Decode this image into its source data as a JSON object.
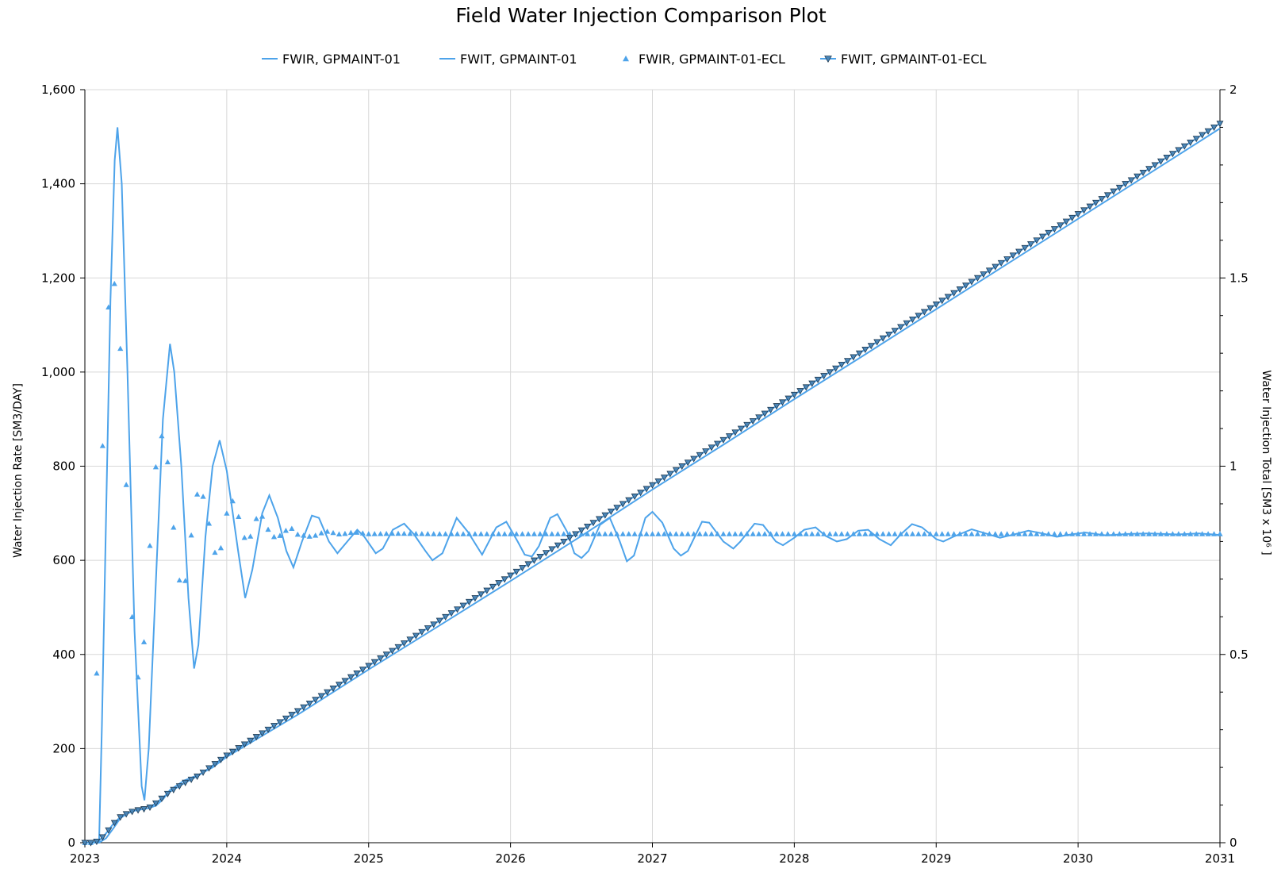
{
  "chart_data": {
    "type": "line",
    "title": "Field Water Injection Comparison Plot",
    "x_ticks": [
      "2023",
      "2024",
      "2025",
      "2026",
      "2027",
      "2028",
      "2029",
      "2030",
      "2031"
    ],
    "xlim": [
      2023,
      2031
    ],
    "ylabel_left": "Water Injection Rate [SM3/DAY]",
    "ylim_left": [
      0,
      1600
    ],
    "yticks_left": [
      "0",
      "200",
      "400",
      "600",
      "800",
      "1,000",
      "1,200",
      "1,400",
      "1,600"
    ],
    "ylabel_right": "Water Injection Total [SM3 x 10⁶ ]",
    "ylim_right": [
      0,
      2
    ],
    "yticks_right": [
      "0",
      "0.5",
      "1",
      "1.5",
      "2"
    ],
    "grid": true,
    "legend_position": "top",
    "series": [
      {
        "name": "FWIR, GPMAINT-01",
        "axis": "left",
        "style": "line",
        "color": "#4da3ea",
        "points": [
          [
            2023.0,
            0
          ],
          [
            2023.1,
            0
          ],
          [
            2023.12,
            250
          ],
          [
            2023.15,
            700
          ],
          [
            2023.18,
            1150
          ],
          [
            2023.21,
            1450
          ],
          [
            2023.23,
            1520
          ],
          [
            2023.26,
            1400
          ],
          [
            2023.3,
            1000
          ],
          [
            2023.35,
            450
          ],
          [
            2023.4,
            120
          ],
          [
            2023.42,
            90
          ],
          [
            2023.45,
            200
          ],
          [
            2023.5,
            550
          ],
          [
            2023.55,
            900
          ],
          [
            2023.6,
            1060
          ],
          [
            2023.63,
            1000
          ],
          [
            2023.68,
            800
          ],
          [
            2023.73,
            520
          ],
          [
            2023.77,
            370
          ],
          [
            2023.8,
            420
          ],
          [
            2023.85,
            650
          ],
          [
            2023.9,
            800
          ],
          [
            2023.95,
            855
          ],
          [
            2024.0,
            790
          ],
          [
            2024.08,
            620
          ],
          [
            2024.13,
            520
          ],
          [
            2024.18,
            580
          ],
          [
            2024.25,
            700
          ],
          [
            2024.3,
            738
          ],
          [
            2024.36,
            690
          ],
          [
            2024.42,
            620
          ],
          [
            2024.47,
            585
          ],
          [
            2024.53,
            640
          ],
          [
            2024.6,
            695
          ],
          [
            2024.65,
            690
          ],
          [
            2024.72,
            640
          ],
          [
            2024.78,
            615
          ],
          [
            2024.85,
            640
          ],
          [
            2024.92,
            665
          ],
          [
            2024.97,
            650
          ],
          [
            2025.05,
            615
          ],
          [
            2025.1,
            625
          ],
          [
            2025.17,
            665
          ],
          [
            2025.25,
            678
          ],
          [
            2025.32,
            655
          ],
          [
            2025.4,
            620
          ],
          [
            2025.45,
            600
          ],
          [
            2025.52,
            615
          ],
          [
            2025.62,
            690
          ],
          [
            2025.7,
            660
          ],
          [
            2025.8,
            612
          ],
          [
            2025.9,
            670
          ],
          [
            2025.97,
            682
          ],
          [
            2026.05,
            640
          ],
          [
            2026.1,
            612
          ],
          [
            2026.15,
            608
          ],
          [
            2026.2,
            630
          ],
          [
            2026.28,
            690
          ],
          [
            2026.33,
            698
          ],
          [
            2026.4,
            660
          ],
          [
            2026.45,
            615
          ],
          [
            2026.5,
            605
          ],
          [
            2026.55,
            620
          ],
          [
            2026.63,
            675
          ],
          [
            2026.7,
            690
          ],
          [
            2026.77,
            640
          ],
          [
            2026.82,
            598
          ],
          [
            2026.87,
            610
          ],
          [
            2026.95,
            690
          ],
          [
            2027.0,
            703
          ],
          [
            2027.07,
            680
          ],
          [
            2027.15,
            625
          ],
          [
            2027.2,
            610
          ],
          [
            2027.25,
            620
          ],
          [
            2027.35,
            682
          ],
          [
            2027.4,
            680
          ],
          [
            2027.5,
            640
          ],
          [
            2027.57,
            625
          ],
          [
            2027.62,
            640
          ],
          [
            2027.72,
            678
          ],
          [
            2027.78,
            675
          ],
          [
            2027.87,
            640
          ],
          [
            2027.92,
            632
          ],
          [
            2028.0,
            648
          ],
          [
            2028.07,
            665
          ],
          [
            2028.15,
            670
          ],
          [
            2028.22,
            652
          ],
          [
            2028.3,
            640
          ],
          [
            2028.37,
            645
          ],
          [
            2028.45,
            663
          ],
          [
            2028.52,
            665
          ],
          [
            2028.6,
            645
          ],
          [
            2028.68,
            632
          ],
          [
            2028.75,
            655
          ],
          [
            2028.83,
            677
          ],
          [
            2028.9,
            670
          ],
          [
            2029.0,
            645
          ],
          [
            2029.05,
            640
          ],
          [
            2029.12,
            650
          ],
          [
            2029.25,
            666
          ],
          [
            2029.35,
            657
          ],
          [
            2029.45,
            648
          ],
          [
            2029.55,
            655
          ],
          [
            2029.65,
            663
          ],
          [
            2029.75,
            657
          ],
          [
            2029.85,
            650
          ],
          [
            2029.95,
            655
          ],
          [
            2030.05,
            659
          ],
          [
            2030.2,
            653
          ],
          [
            2030.35,
            656
          ],
          [
            2030.5,
            657
          ],
          [
            2030.7,
            655
          ],
          [
            2030.85,
            657
          ],
          [
            2031.0,
            654
          ]
        ]
      },
      {
        "name": "FWIT, GPMAINT-01",
        "axis": "right",
        "style": "line",
        "color": "#4da3ea",
        "points": [
          [
            2023.0,
            0
          ],
          [
            2023.1,
            0
          ],
          [
            2023.15,
            0.012
          ],
          [
            2023.2,
            0.038
          ],
          [
            2023.25,
            0.065
          ],
          [
            2023.3,
            0.078
          ],
          [
            2023.35,
            0.085
          ],
          [
            2023.45,
            0.092
          ],
          [
            2023.5,
            0.098
          ],
          [
            2023.55,
            0.115
          ],
          [
            2023.6,
            0.14
          ],
          [
            2023.7,
            0.165
          ],
          [
            2023.8,
            0.18
          ],
          [
            2023.9,
            0.2
          ],
          [
            2024.0,
            0.228
          ],
          [
            2024.5,
            0.34
          ],
          [
            2025.0,
            0.46
          ],
          [
            2025.5,
            0.577
          ],
          [
            2026.0,
            0.695
          ],
          [
            2026.5,
            0.815
          ],
          [
            2027.0,
            0.938
          ],
          [
            2027.5,
            1.057
          ],
          [
            2028.0,
            1.178
          ],
          [
            2028.5,
            1.297
          ],
          [
            2029.0,
            1.417
          ],
          [
            2029.5,
            1.537
          ],
          [
            2030.0,
            1.657
          ],
          [
            2030.5,
            1.777
          ],
          [
            2031.0,
            1.897
          ]
        ]
      },
      {
        "name": "FWIR, GPMAINT-01-ECL",
        "axis": "left",
        "style": "triangle-up",
        "color": "#4da3ea",
        "points": [
          [
            2023.0,
            0
          ],
          [
            2023.05,
            0
          ],
          [
            2023.07,
            200
          ],
          [
            2023.1,
            560
          ],
          [
            2023.13,
            900
          ],
          [
            2023.16,
            1120
          ],
          [
            2023.19,
            1200
          ],
          [
            2023.22,
            1180
          ],
          [
            2023.25,
            1050
          ],
          [
            2023.28,
            850
          ],
          [
            2023.31,
            620
          ],
          [
            2023.34,
            440
          ],
          [
            2023.37,
            350
          ],
          [
            2023.4,
            360
          ],
          [
            2023.43,
            480
          ],
          [
            2023.46,
            640
          ],
          [
            2023.49,
            770
          ],
          [
            2023.52,
            855
          ],
          [
            2023.55,
            868
          ],
          [
            2023.58,
            820
          ],
          [
            2023.61,
            720
          ],
          [
            2023.64,
            620
          ],
          [
            2023.67,
            550
          ],
          [
            2023.7,
            540
          ],
          [
            2023.73,
            600
          ],
          [
            2023.76,
            680
          ],
          [
            2023.79,
            740
          ],
          [
            2023.82,
            748
          ],
          [
            2023.85,
            720
          ],
          [
            2023.88,
            670
          ],
          [
            2023.91,
            620
          ],
          [
            2023.94,
            605
          ],
          [
            2023.97,
            640
          ],
          [
            2024.0,
            700
          ],
          [
            2024.03,
            730
          ],
          [
            2024.06,
            720
          ],
          [
            2024.09,
            685
          ],
          [
            2024.12,
            650
          ],
          [
            2024.15,
            640
          ],
          [
            2024.18,
            660
          ],
          [
            2024.21,
            690
          ],
          [
            2024.24,
            700
          ],
          [
            2024.27,
            680
          ],
          [
            2024.3,
            660
          ],
          [
            2024.35,
            645
          ],
          [
            2024.4,
            660
          ],
          [
            2024.45,
            670
          ],
          [
            2024.5,
            655
          ],
          [
            2024.6,
            650
          ],
          [
            2024.7,
            662
          ],
          [
            2024.8,
            655
          ],
          [
            2024.9,
            660
          ],
          [
            2025.0,
            656
          ],
          [
            2025.2,
            657
          ],
          [
            2025.5,
            656
          ],
          [
            2026.0,
            656
          ],
          [
            2026.5,
            656
          ],
          [
            2027.0,
            656
          ],
          [
            2027.5,
            656
          ],
          [
            2028.0,
            656
          ],
          [
            2028.5,
            656
          ],
          [
            2029.0,
            656
          ],
          [
            2029.5,
            656
          ],
          [
            2030.0,
            656
          ],
          [
            2030.5,
            656
          ],
          [
            2031.0,
            656
          ]
        ]
      },
      {
        "name": "FWIT, GPMAINT-01-ECL",
        "axis": "right",
        "style": "line-triangle-down",
        "color": "#4da3ea",
        "marker_fill": "#4a86b8",
        "points": [
          [
            2023.0,
            0
          ],
          [
            2023.05,
            0
          ],
          [
            2023.1,
            0.005
          ],
          [
            2023.15,
            0.025
          ],
          [
            2023.2,
            0.05
          ],
          [
            2023.25,
            0.068
          ],
          [
            2023.3,
            0.078
          ],
          [
            2023.35,
            0.085
          ],
          [
            2023.45,
            0.092
          ],
          [
            2023.5,
            0.105
          ],
          [
            2023.6,
            0.135
          ],
          [
            2023.7,
            0.158
          ],
          [
            2023.8,
            0.178
          ],
          [
            2023.9,
            0.205
          ],
          [
            2024.0,
            0.232
          ],
          [
            2024.5,
            0.35
          ],
          [
            2025.0,
            0.47
          ],
          [
            2025.5,
            0.59
          ],
          [
            2026.0,
            0.71
          ],
          [
            2026.5,
            0.83
          ],
          [
            2027.0,
            0.95
          ],
          [
            2027.5,
            1.07
          ],
          [
            2028.0,
            1.19
          ],
          [
            2028.5,
            1.31
          ],
          [
            2029.0,
            1.43
          ],
          [
            2029.5,
            1.55
          ],
          [
            2030.0,
            1.67
          ],
          [
            2030.5,
            1.79
          ],
          [
            2031.0,
            1.91
          ]
        ]
      }
    ]
  }
}
